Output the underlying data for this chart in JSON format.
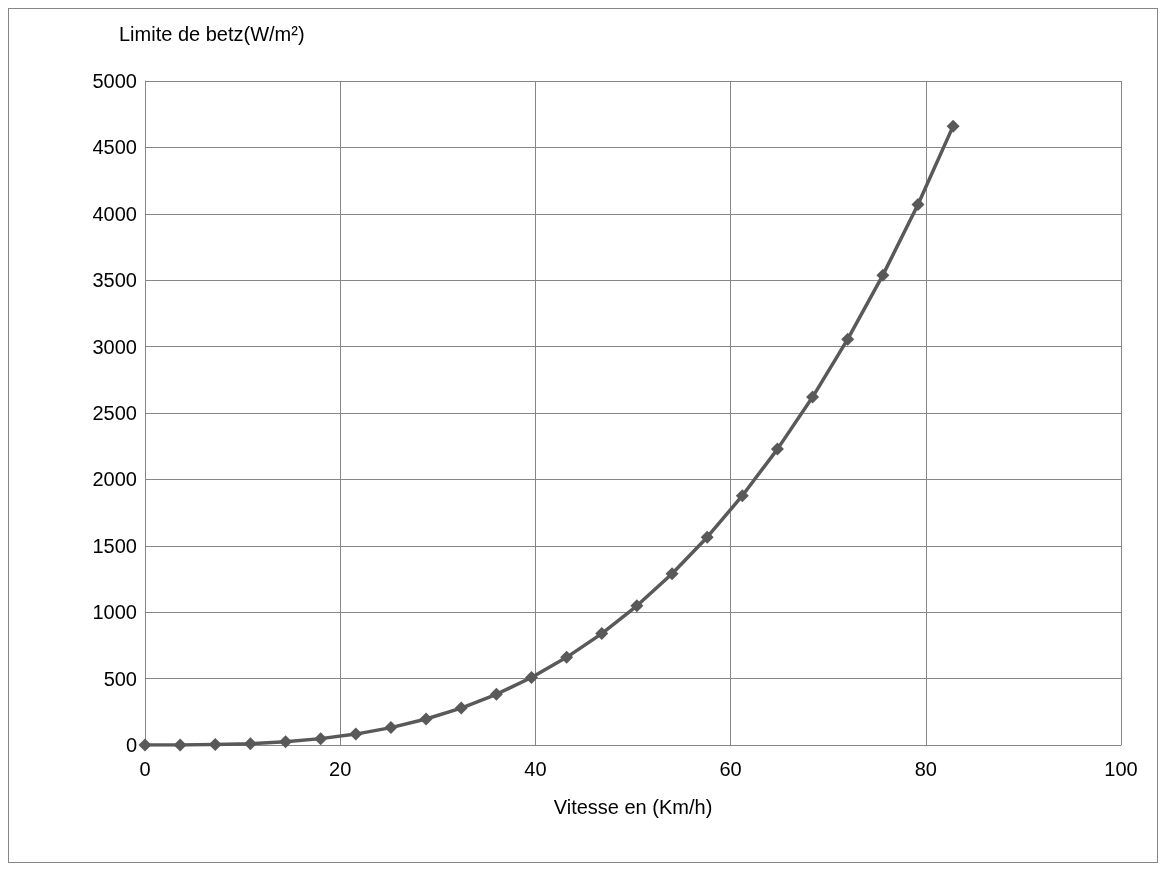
{
  "chart_data": {
    "type": "line",
    "ylabel": "Limite de betz(W/m²)",
    "xlabel": "Vitesse en (Km/h)",
    "x": [
      0,
      3.6,
      7.2,
      10.8,
      14.4,
      18,
      21.6,
      25.2,
      28.8,
      32.4,
      36,
      39.6,
      43.2,
      46.8,
      50.4,
      54,
      57.6,
      61.2,
      64.8,
      68.4,
      72,
      75.6,
      79.2,
      82.8
    ],
    "series": [
      {
        "color": "#595959",
        "values": [
          0,
          0,
          3,
          10,
          24,
          48,
          82,
          131,
          196,
          278,
          382,
          508,
          660,
          839,
          1048,
          1289,
          1565,
          1877,
          2228,
          2620,
          3056,
          3538,
          4070,
          4660
        ]
      }
    ],
    "xlim": [
      0,
      100
    ],
    "xticks": [
      0,
      20,
      40,
      60,
      80,
      100
    ],
    "ylim": [
      0,
      5000
    ],
    "yticks": [
      0,
      500,
      1000,
      1500,
      2000,
      2500,
      3000,
      3500,
      4000,
      4500,
      5000
    ],
    "grid": true,
    "marker": "diamond",
    "line_style": "solid"
  }
}
